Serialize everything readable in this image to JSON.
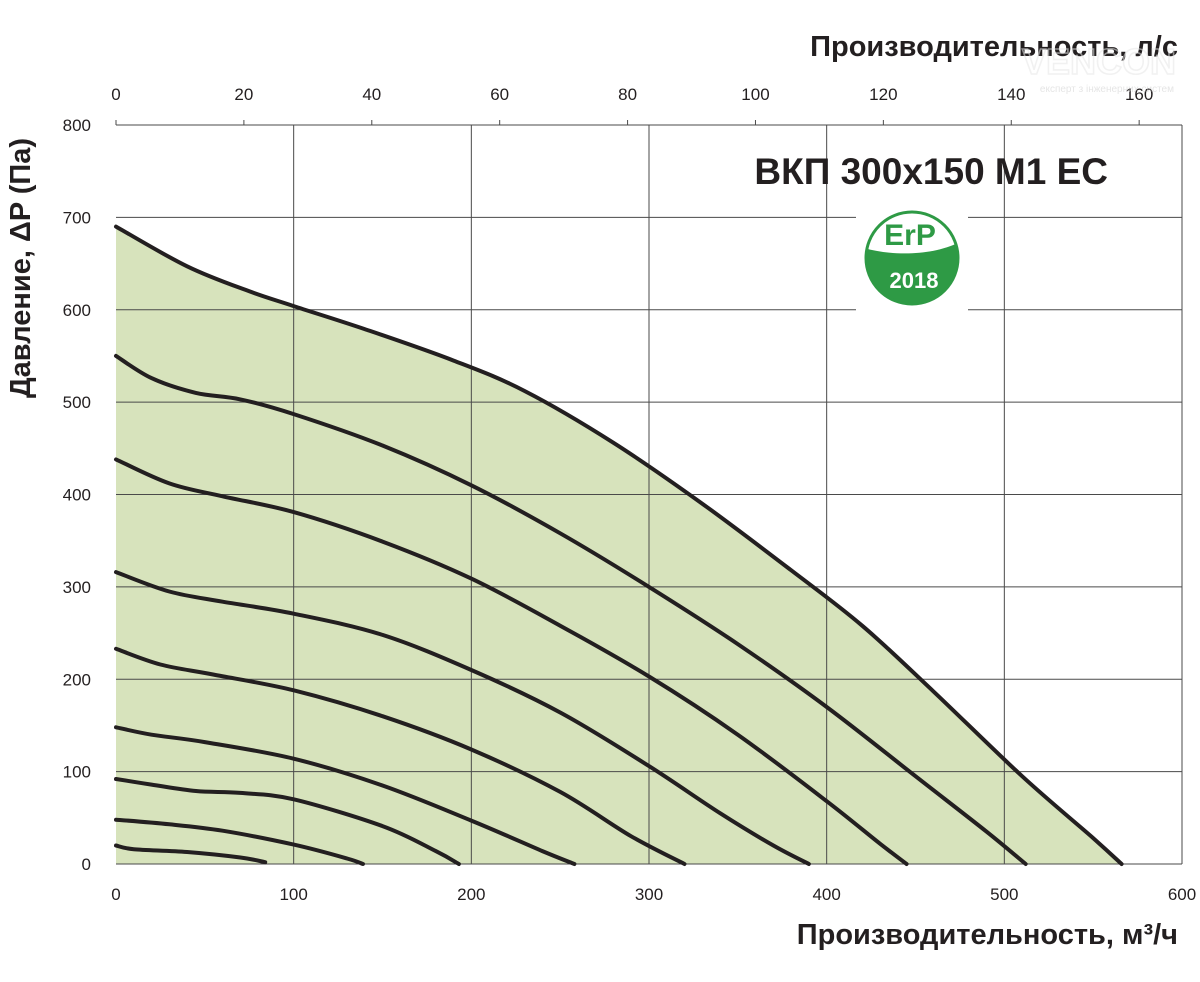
{
  "chart_data": {
    "type": "line",
    "title": "ВКП 300x150 M1 EC",
    "xlabel": "Производительность, м³/ч",
    "ylabel": "Давление, ΔP (Па)",
    "x2label": "Производительность, л/с",
    "xlim": [
      0,
      600
    ],
    "ylim": [
      0,
      800
    ],
    "x2lim": [
      0,
      166.7
    ],
    "x_ticks": [
      0,
      100,
      200,
      300,
      400,
      500,
      600
    ],
    "y_ticks": [
      0,
      100,
      200,
      300,
      400,
      500,
      600,
      700,
      800
    ],
    "x2_ticks": [
      0,
      20,
      40,
      60,
      80,
      100,
      120,
      140,
      160
    ],
    "grid": true,
    "fill_color": "#d7e3bc",
    "line_color": "#231f20",
    "badge": {
      "top": "ErP",
      "bottom": "2018",
      "color": "#2e9a45"
    },
    "watermark": {
      "brand": "VENCON",
      "tagline": "експерт з інженерних систем"
    },
    "series": [
      {
        "x": [
          0,
          40,
          75,
          100,
          140,
          190,
          230,
          280,
          330,
          380,
          420,
          460,
          510,
          550,
          566
        ],
        "y": [
          690,
          647,
          620,
          604,
          579,
          545,
          512,
          456,
          390,
          318,
          258,
          187,
          95,
          28,
          0
        ]
      },
      {
        "x": [
          0,
          20,
          45,
          70,
          100,
          150,
          200,
          250,
          300,
          350,
          400,
          450,
          490,
          512
        ],
        "y": [
          550,
          526,
          510,
          503,
          487,
          453,
          410,
          358,
          300,
          238,
          170,
          95,
          35,
          0
        ]
      },
      {
        "x": [
          0,
          30,
          60,
          100,
          150,
          200,
          250,
          300,
          350,
          400,
          430,
          445
        ],
        "y": [
          438,
          412,
          398,
          381,
          349,
          309,
          258,
          203,
          140,
          68,
          22,
          0
        ]
      },
      {
        "x": [
          0,
          30,
          60,
          100,
          150,
          200,
          250,
          300,
          340,
          370,
          390
        ],
        "y": [
          316,
          295,
          284,
          271,
          248,
          210,
          164,
          106,
          55,
          20,
          0
        ]
      },
      {
        "x": [
          0,
          25,
          55,
          100,
          150,
          200,
          250,
          290,
          320
        ],
        "y": [
          233,
          216,
          205,
          188,
          160,
          124,
          78,
          30,
          0
        ]
      },
      {
        "x": [
          0,
          20,
          50,
          100,
          150,
          200,
          240,
          258
        ],
        "y": [
          148,
          140,
          132,
          114,
          85,
          47,
          14,
          0
        ]
      },
      {
        "x": [
          0,
          20,
          45,
          70,
          100,
          150,
          180,
          193
        ],
        "y": [
          92,
          86,
          79,
          77,
          70,
          41,
          14,
          0
        ]
      },
      {
        "x": [
          0,
          30,
          60,
          100,
          130,
          139
        ],
        "y": [
          48,
          43,
          36,
          21,
          6,
          0
        ]
      },
      {
        "x": [
          0,
          10,
          40,
          70,
          84
        ],
        "y": [
          20,
          16,
          13,
          7,
          2
        ]
      }
    ]
  }
}
